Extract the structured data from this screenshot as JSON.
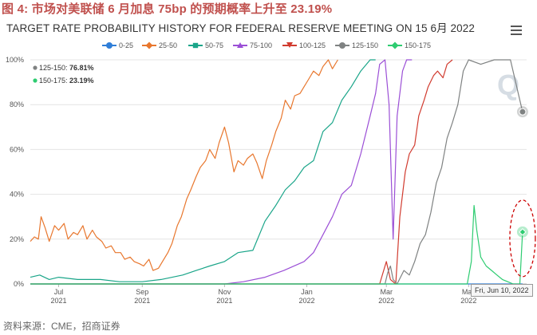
{
  "figure_title": "图 4: 市场对美联储 6 月加息 75bp 的预期概率上升至 23.19%",
  "chart_title": "TARGET RATE PROBABILITY HISTORY FOR FEDERAL RESERVE MEETING ON 15 6月 2022",
  "source": "资料来源：CME，招商证券",
  "logo_text": "Q",
  "menu_icon": "hamburger-menu-icon",
  "tooltip": {
    "date": "Fri, Jun 10, 2022",
    "rows": [
      {
        "label": "125-150",
        "value": "76.81%",
        "color": "#7f8282"
      },
      {
        "label": "150-175",
        "value": "23.19%",
        "color": "#2ecc71"
      }
    ]
  },
  "highlight_color": "#cc0000",
  "chart_data": {
    "type": "line",
    "title": "TARGET RATE PROBABILITY HISTORY FOR FEDERAL RESERVE MEETING ON 15 6月 2022",
    "ylim": [
      0,
      100
    ],
    "y_ticks": [
      "0%",
      "20%",
      "40%",
      "60%",
      "80%",
      "100%"
    ],
    "xlim": [
      "2021-06-10",
      "2022-06-13"
    ],
    "x_ticks": [
      {
        "date": "2021-07-01",
        "line1": "Jul",
        "line2": "2021"
      },
      {
        "date": "2021-09-01",
        "line1": "Sep",
        "line2": "2021"
      },
      {
        "date": "2021-11-01",
        "line1": "Nov",
        "line2": "2021"
      },
      {
        "date": "2022-01-01",
        "line1": "Jan",
        "line2": "2022"
      },
      {
        "date": "2022-03-01",
        "line1": "Mar",
        "line2": "2022"
      },
      {
        "date": "2022-05-01",
        "line1": "May",
        "line2": "2022"
      }
    ],
    "grid": true,
    "legend_position": "top",
    "series": [
      {
        "name": "0-25",
        "color": "#2f7ed8",
        "marker": "circle",
        "points": [
          [
            "2021-06-10",
            0
          ],
          [
            "2022-06-10",
            0
          ]
        ]
      },
      {
        "name": "25-50",
        "color": "#e8772e",
        "marker": "diamond",
        "points": [
          [
            "2021-06-10",
            19
          ],
          [
            "2021-06-13",
            21
          ],
          [
            "2021-06-16",
            20
          ],
          [
            "2021-06-18",
            30
          ],
          [
            "2021-06-21",
            25
          ],
          [
            "2021-06-24",
            19
          ],
          [
            "2021-06-28",
            26
          ],
          [
            "2021-07-01",
            24
          ],
          [
            "2021-07-05",
            27
          ],
          [
            "2021-07-08",
            20
          ],
          [
            "2021-07-12",
            23
          ],
          [
            "2021-07-15",
            22
          ],
          [
            "2021-07-19",
            26
          ],
          [
            "2021-07-22",
            20
          ],
          [
            "2021-07-26",
            24
          ],
          [
            "2021-07-29",
            21
          ],
          [
            "2021-08-02",
            19
          ],
          [
            "2021-08-05",
            16
          ],
          [
            "2021-08-09",
            17
          ],
          [
            "2021-08-12",
            14
          ],
          [
            "2021-08-16",
            14
          ],
          [
            "2021-08-19",
            11
          ],
          [
            "2021-08-23",
            12
          ],
          [
            "2021-08-26",
            10
          ],
          [
            "2021-08-30",
            9
          ],
          [
            "2021-09-02",
            8
          ],
          [
            "2021-09-06",
            11
          ],
          [
            "2021-09-09",
            6
          ],
          [
            "2021-09-13",
            7
          ],
          [
            "2021-09-16",
            10
          ],
          [
            "2021-09-20",
            14
          ],
          [
            "2021-09-23",
            18
          ],
          [
            "2021-09-27",
            26
          ],
          [
            "2021-09-30",
            30
          ],
          [
            "2021-10-04",
            38
          ],
          [
            "2021-10-07",
            42
          ],
          [
            "2021-10-11",
            48
          ],
          [
            "2021-10-14",
            52
          ],
          [
            "2021-10-18",
            55
          ],
          [
            "2021-10-21",
            60
          ],
          [
            "2021-10-25",
            56
          ],
          [
            "2021-10-28",
            63
          ],
          [
            "2021-11-01",
            70
          ],
          [
            "2021-11-04",
            63
          ],
          [
            "2021-11-08",
            50
          ],
          [
            "2021-11-11",
            55
          ],
          [
            "2021-11-15",
            53
          ],
          [
            "2021-11-18",
            56
          ],
          [
            "2021-11-22",
            58
          ],
          [
            "2021-11-25",
            54
          ],
          [
            "2021-11-29",
            47
          ],
          [
            "2021-12-02",
            55
          ],
          [
            "2021-12-06",
            62
          ],
          [
            "2021-12-09",
            68
          ],
          [
            "2021-12-13",
            74
          ],
          [
            "2021-12-16",
            82
          ],
          [
            "2021-12-20",
            78
          ],
          [
            "2021-12-23",
            84
          ],
          [
            "2021-12-27",
            85
          ],
          [
            "2021-12-30",
            88
          ],
          [
            "2022-01-03",
            92
          ],
          [
            "2022-01-06",
            95
          ],
          [
            "2022-01-10",
            93
          ],
          [
            "2022-01-13",
            97
          ],
          [
            "2022-01-17",
            100
          ],
          [
            "2022-01-20",
            96
          ],
          [
            "2022-01-24",
            100
          ]
        ]
      },
      {
        "name": "50-75",
        "color": "#1aa589",
        "marker": "square",
        "points": [
          [
            "2021-06-10",
            3
          ],
          [
            "2021-06-17",
            4
          ],
          [
            "2021-06-24",
            2
          ],
          [
            "2021-07-01",
            3
          ],
          [
            "2021-07-15",
            2
          ],
          [
            "2021-08-01",
            2
          ],
          [
            "2021-08-15",
            1
          ],
          [
            "2021-09-01",
            1
          ],
          [
            "2021-09-15",
            2
          ],
          [
            "2021-10-01",
            4
          ],
          [
            "2021-10-11",
            6
          ],
          [
            "2021-10-21",
            8
          ],
          [
            "2021-11-01",
            10
          ],
          [
            "2021-11-11",
            14
          ],
          [
            "2021-11-22",
            15
          ],
          [
            "2021-12-01",
            28
          ],
          [
            "2021-12-09",
            35
          ],
          [
            "2021-12-16",
            42
          ],
          [
            "2021-12-23",
            46
          ],
          [
            "2021-12-30",
            52
          ],
          [
            "2022-01-06",
            55
          ],
          [
            "2022-01-13",
            68
          ],
          [
            "2022-01-20",
            72
          ],
          [
            "2022-01-27",
            82
          ],
          [
            "2022-02-03",
            88
          ],
          [
            "2022-02-10",
            95
          ],
          [
            "2022-02-17",
            100
          ],
          [
            "2022-02-21",
            100
          ]
        ]
      },
      {
        "name": "75-100",
        "color": "#9b4fd6",
        "marker": "triangle",
        "points": [
          [
            "2021-06-10",
            0
          ],
          [
            "2021-11-01",
            0
          ],
          [
            "2021-11-15",
            1
          ],
          [
            "2021-12-01",
            3
          ],
          [
            "2021-12-15",
            6
          ],
          [
            "2021-12-30",
            10
          ],
          [
            "2022-01-06",
            14
          ],
          [
            "2022-01-13",
            22
          ],
          [
            "2022-01-20",
            30
          ],
          [
            "2022-01-27",
            40
          ],
          [
            "2022-02-03",
            44
          ],
          [
            "2022-02-10",
            58
          ],
          [
            "2022-02-17",
            75
          ],
          [
            "2022-02-21",
            85
          ],
          [
            "2022-02-24",
            98
          ],
          [
            "2022-02-28",
            100
          ],
          [
            "2022-03-03",
            80
          ],
          [
            "2022-03-06",
            20
          ],
          [
            "2022-03-09",
            75
          ],
          [
            "2022-03-13",
            95
          ],
          [
            "2022-03-16",
            100
          ],
          [
            "2022-03-20",
            100
          ]
        ]
      },
      {
        "name": "100-125",
        "color": "#d13b2f",
        "marker": "triangle-down",
        "points": [
          [
            "2021-06-10",
            0
          ],
          [
            "2022-02-24",
            0
          ],
          [
            "2022-03-01",
            10
          ],
          [
            "2022-03-04",
            2
          ],
          [
            "2022-03-08",
            0
          ],
          [
            "2022-03-11",
            30
          ],
          [
            "2022-03-15",
            50
          ],
          [
            "2022-03-18",
            58
          ],
          [
            "2022-03-22",
            62
          ],
          [
            "2022-03-25",
            75
          ],
          [
            "2022-03-29",
            82
          ],
          [
            "2022-04-01",
            88
          ],
          [
            "2022-04-05",
            93
          ],
          [
            "2022-04-08",
            95
          ],
          [
            "2022-04-12",
            92
          ],
          [
            "2022-04-15",
            98
          ],
          [
            "2022-04-19",
            100
          ]
        ]
      },
      {
        "name": "125-150",
        "color": "#7f8282",
        "marker": "circle",
        "points": [
          [
            "2021-06-10",
            0
          ],
          [
            "2022-02-28",
            0
          ],
          [
            "2022-03-02",
            5
          ],
          [
            "2022-03-04",
            8
          ],
          [
            "2022-03-06",
            2
          ],
          [
            "2022-03-09",
            0
          ],
          [
            "2022-03-14",
            6
          ],
          [
            "2022-03-18",
            4
          ],
          [
            "2022-03-22",
            10
          ],
          [
            "2022-03-26",
            18
          ],
          [
            "2022-03-30",
            22
          ],
          [
            "2022-04-03",
            32
          ],
          [
            "2022-04-07",
            45
          ],
          [
            "2022-04-11",
            52
          ],
          [
            "2022-04-15",
            65
          ],
          [
            "2022-04-19",
            72
          ],
          [
            "2022-04-23",
            80
          ],
          [
            "2022-04-27",
            95
          ],
          [
            "2022-05-01",
            100
          ],
          [
            "2022-05-10",
            98
          ],
          [
            "2022-05-20",
            100
          ],
          [
            "2022-06-01",
            100
          ],
          [
            "2022-06-10",
            76.81
          ]
        ]
      },
      {
        "name": "150-175",
        "color": "#2ecc71",
        "marker": "diamond",
        "points": [
          [
            "2021-06-10",
            0
          ],
          [
            "2022-04-30",
            0
          ],
          [
            "2022-05-03",
            10
          ],
          [
            "2022-05-05",
            35
          ],
          [
            "2022-05-07",
            24
          ],
          [
            "2022-05-10",
            12
          ],
          [
            "2022-05-14",
            8
          ],
          [
            "2022-05-18",
            6
          ],
          [
            "2022-05-22",
            4
          ],
          [
            "2022-05-26",
            2
          ],
          [
            "2022-05-30",
            1
          ],
          [
            "2022-06-03",
            0
          ],
          [
            "2022-06-08",
            0
          ],
          [
            "2022-06-10",
            23.19
          ]
        ]
      }
    ]
  }
}
